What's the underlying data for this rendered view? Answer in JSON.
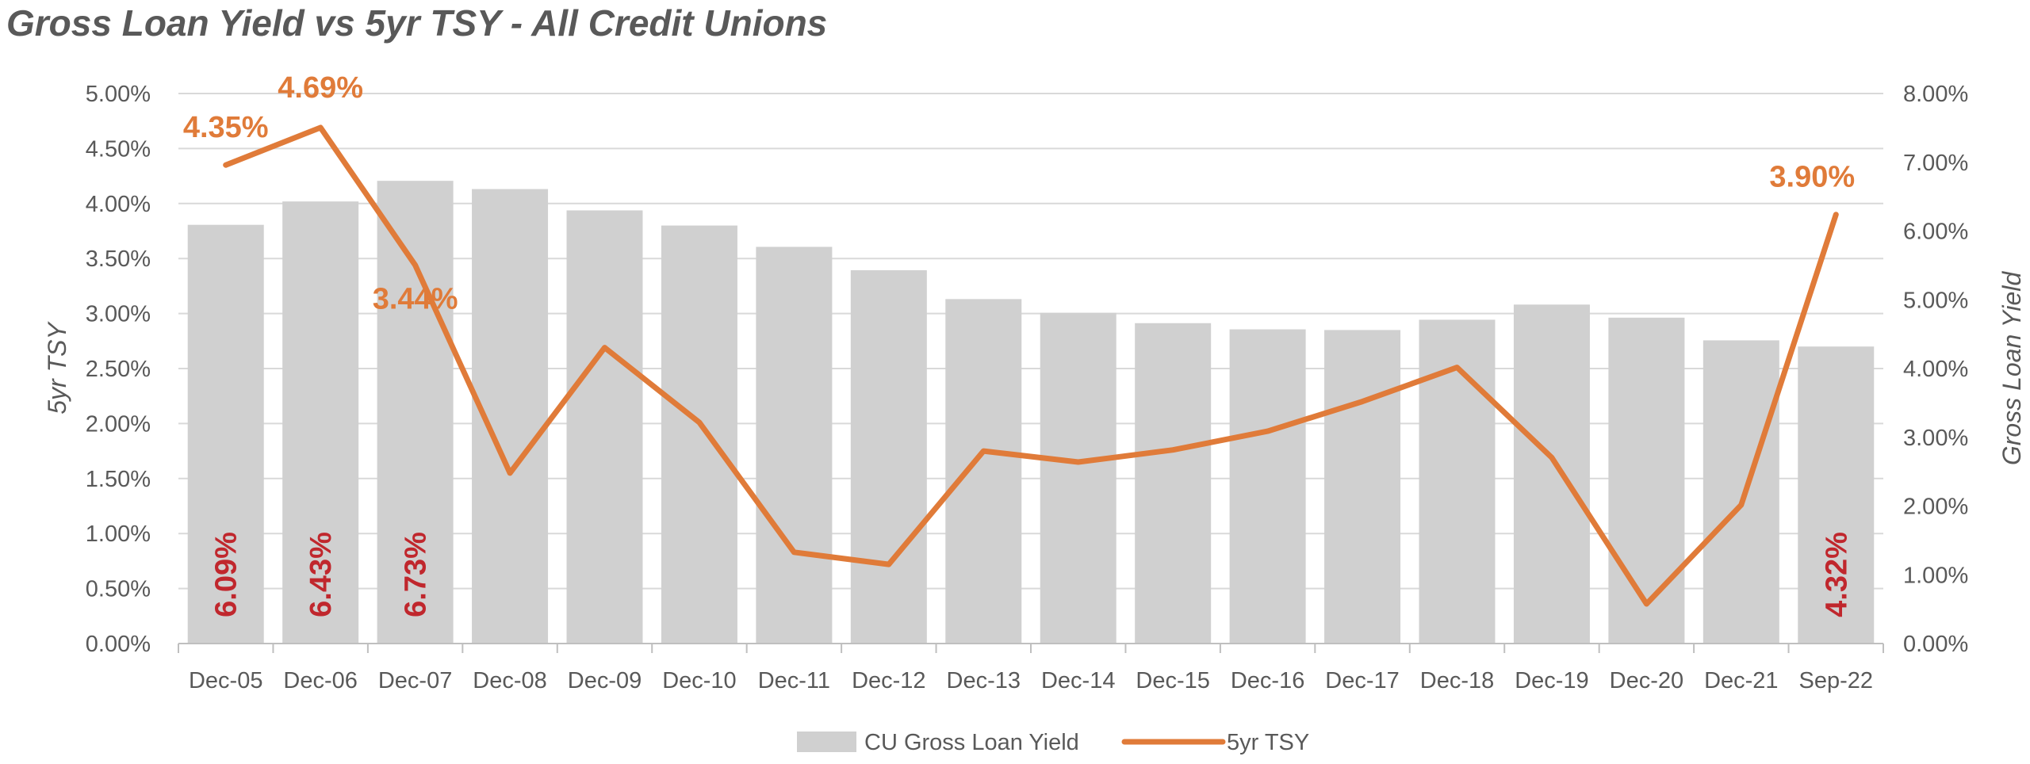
{
  "chart_data": {
    "type": "bar",
    "title": "Gross Loan Yield vs 5yr TSY - All Credit Unions",
    "categories": [
      "Dec-05",
      "Dec-06",
      "Dec-07",
      "Dec-08",
      "Dec-09",
      "Dec-10",
      "Dec-11",
      "Dec-12",
      "Dec-13",
      "Dec-14",
      "Dec-15",
      "Dec-16",
      "Dec-17",
      "Dec-18",
      "Dec-19",
      "Dec-20",
      "Dec-21",
      "Sep-22"
    ],
    "series": [
      {
        "name": "CU Gross Loan Yield",
        "type": "bar",
        "axis": "right",
        "color": "#D0D0D0",
        "values": [
          6.09,
          6.43,
          6.73,
          6.61,
          6.3,
          6.08,
          5.77,
          5.43,
          5.01,
          4.81,
          4.66,
          4.57,
          4.56,
          4.71,
          4.93,
          4.74,
          4.41,
          4.32
        ],
        "data_labels": {
          "0": "6.09%",
          "1": "6.43%",
          "2": "6.73%",
          "17": "4.32%"
        }
      },
      {
        "name": "5yr TSY",
        "type": "line",
        "axis": "left",
        "color": "#E07B39",
        "values": [
          4.35,
          4.69,
          3.44,
          1.55,
          2.69,
          2.01,
          0.83,
          0.72,
          1.75,
          1.65,
          1.76,
          1.93,
          2.2,
          2.51,
          1.69,
          0.36,
          1.26,
          3.9
        ],
        "data_labels": {
          "0": "4.35%",
          "1": "4.69%",
          "2": "3.44%",
          "17": "3.90%"
        }
      }
    ],
    "y_left": {
      "label": "5yr TSY",
      "ylim": [
        0,
        5
      ],
      "ticks": [
        "0.00%",
        "0.50%",
        "1.00%",
        "1.50%",
        "2.00%",
        "2.50%",
        "3.00%",
        "3.50%",
        "4.00%",
        "4.50%",
        "5.00%"
      ]
    },
    "y_right": {
      "label": "Gross Loan Yield",
      "ylim": [
        0,
        8
      ],
      "ticks": [
        "0.00%",
        "1.00%",
        "2.00%",
        "3.00%",
        "4.00%",
        "5.00%",
        "6.00%",
        "7.00%",
        "8.00%"
      ]
    },
    "grid": true,
    "legend": {
      "position": "bottom",
      "items": [
        "CU Gross Loan Yield",
        "5yr TSY"
      ]
    }
  }
}
